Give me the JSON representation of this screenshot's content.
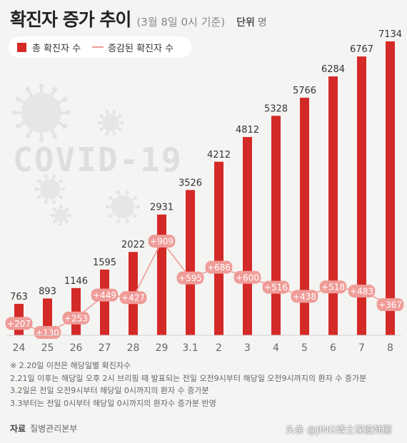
{
  "header": {
    "title": "확진자 증가 추이",
    "subtitle": "(3월 8일 0시 기준)",
    "unit_label": "단위",
    "unit_value": "명"
  },
  "watermark": "COVID-19",
  "chart_data": {
    "type": "bar",
    "title": "확진자 증가 추이",
    "categories": [
      "24",
      "25",
      "26",
      "27",
      "28",
      "29",
      "3.1",
      "2",
      "3",
      "4",
      "5",
      "6",
      "7",
      "8"
    ],
    "series": [
      {
        "name": "총 확진자 수",
        "type": "bar",
        "color": "#d42a27",
        "values": [
          763,
          893,
          1146,
          1595,
          2022,
          2931,
          3526,
          4212,
          4812,
          5328,
          5766,
          6284,
          6767,
          7134
        ]
      },
      {
        "name": "증감된 확진자 수",
        "type": "line",
        "color": "#ef9c98",
        "values": [
          207,
          130,
          253,
          449,
          427,
          909,
          595,
          686,
          600,
          516,
          438,
          518,
          483,
          367
        ],
        "labels": [
          "+207",
          "+130",
          "+253",
          "+449",
          "+427",
          "+909",
          "+595",
          "+686",
          "+600",
          "+516",
          "+438",
          "+518",
          "+483",
          "+367"
        ]
      }
    ],
    "legend": [
      "총 확진자 수",
      "증감된 확진자 수"
    ],
    "legend_position": "top-left",
    "grid": false
  },
  "notes": [
    "※ 2.20일 이전은 해당일별 확진자수",
    "2.21일 이후는 해당일 오후 2시 브리핑 때 발표되는 전일 오전9시부터 해당일 오전9시까지의 환자 수 증가분",
    "3.2일은 전일 오전9시부터 해당일 0시까지의 환자 수 증가분",
    "3.3부터는 전일 0시부터 해당일 0시까지의 환자수 증가분 반영"
  ],
  "source": {
    "label": "자료",
    "value": "질병관리본부"
  },
  "credit": "头条 @JING博士深度韩国"
}
